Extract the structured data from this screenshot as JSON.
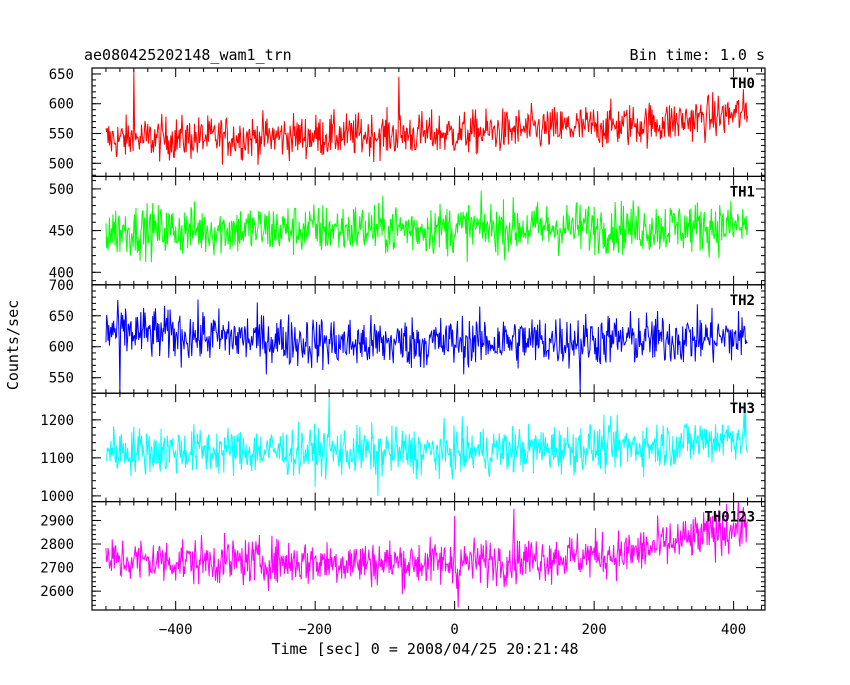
{
  "chart_data": {
    "type": "line",
    "title_left": "ae080425202148_wam1_trn",
    "title_right": "Bin time: 1.0 s",
    "xlabel": "Time [sec] 0 = 2008/04/25 20:21:48",
    "ylabel": "Counts/sec",
    "xlim": [
      -520,
      445
    ],
    "x_range": [
      -500,
      420
    ],
    "bin_time": 1.0,
    "xticks": [
      -400,
      -200,
      0,
      200,
      400
    ],
    "xtick_labels": [
      "−400",
      "−200",
      "0",
      "200",
      "400"
    ],
    "panels": [
      {
        "name": "TH0",
        "color": "#ff0000",
        "ylim": [
          478,
          660
        ],
        "yticks": [
          500,
          550,
          600,
          650
        ],
        "trend": [
          [
            -500,
            540
          ],
          [
            0,
            550
          ],
          [
            300,
            568
          ],
          [
            420,
            585
          ]
        ],
        "noise": 26,
        "spikes": [
          [
            -460,
            655
          ],
          [
            -80,
            645
          ]
        ]
      },
      {
        "name": "TH1",
        "color": "#00ff00",
        "ylim": [
          385,
          515
        ],
        "yticks": [
          400,
          450,
          500
        ],
        "trend": [
          [
            -500,
            450
          ],
          [
            420,
            455
          ]
        ],
        "noise": 22,
        "spikes": []
      },
      {
        "name": "TH2",
        "color": "#0000ff",
        "ylim": [
          525,
          700
        ],
        "yticks": [
          550,
          600,
          650,
          700
        ],
        "trend": [
          [
            -500,
            625
          ],
          [
            -150,
            605
          ],
          [
            150,
            610
          ],
          [
            420,
            615
          ]
        ],
        "noise": 30,
        "spikes": [
          [
            -480,
            525
          ],
          [
            180,
            528
          ]
        ]
      },
      {
        "name": "TH3",
        "color": "#00ffff",
        "ylim": [
          985,
          1270
        ],
        "yticks": [
          1000,
          1100,
          1200
        ],
        "trend": [
          [
            -500,
            1120
          ],
          [
            0,
            1115
          ],
          [
            300,
            1135
          ],
          [
            420,
            1160
          ]
        ],
        "noise": 45,
        "spikes": [
          [
            -180,
            1260
          ],
          [
            -110,
            1000
          ]
        ]
      },
      {
        "name": "TH0123",
        "color": "#ff00ff",
        "ylim": [
          2520,
          2980
        ],
        "yticks": [
          2600,
          2700,
          2800,
          2900
        ],
        "trend": [
          [
            -500,
            2730
          ],
          [
            0,
            2720
          ],
          [
            250,
            2760
          ],
          [
            420,
            2880
          ]
        ],
        "noise": 70,
        "spikes": [
          [
            0,
            2920
          ],
          [
            5,
            2530
          ],
          [
            85,
            2950
          ],
          [
            390,
            2970
          ]
        ]
      }
    ]
  }
}
